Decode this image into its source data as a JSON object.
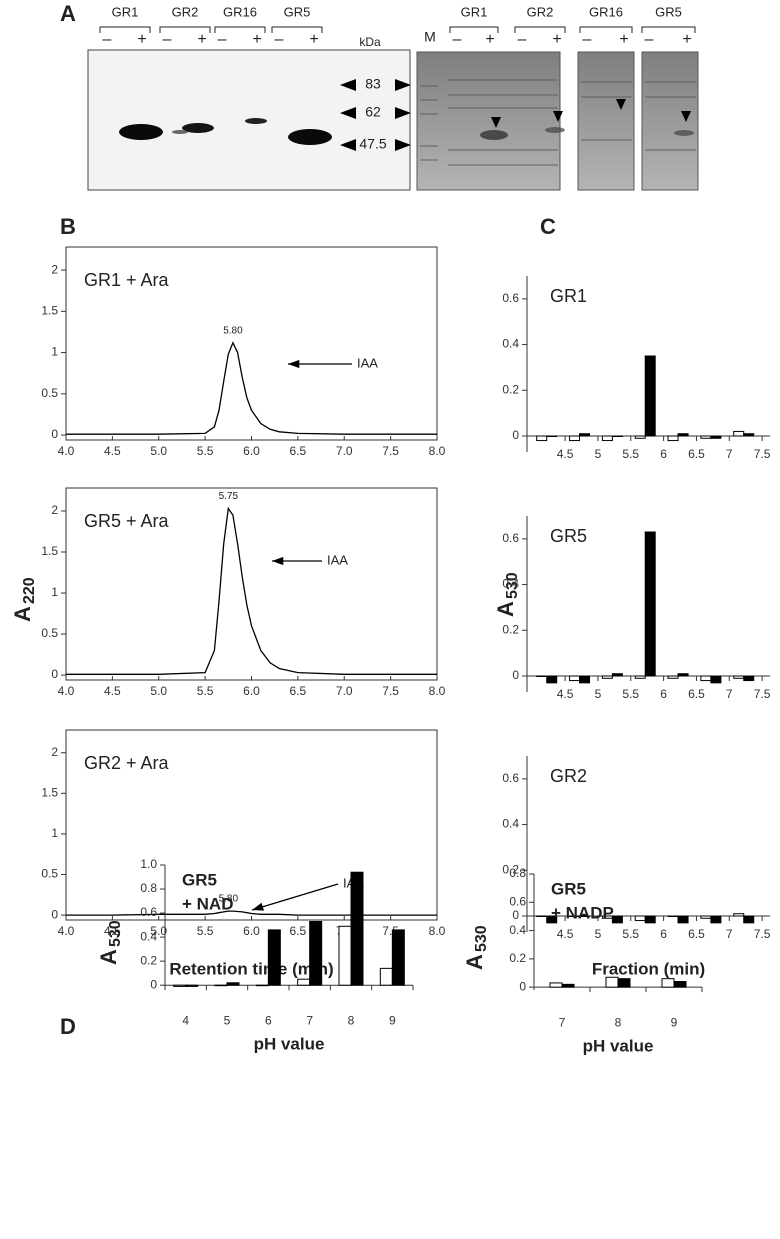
{
  "gel": {
    "panel": "A",
    "groups": [
      "GR1",
      "GR2",
      "GR16",
      "GR5"
    ],
    "signs": [
      "–",
      "+"
    ],
    "unit": "kDa",
    "markers": [
      83,
      62,
      47.5
    ],
    "ladder": "M"
  },
  "chart_data": [
    {
      "type": "line",
      "panel": "B",
      "title": "GR1 + Ara",
      "peak_label": "5.80",
      "annotation": "IAA",
      "x": [
        4.0,
        4.5,
        5.0,
        5.5,
        5.6,
        5.65,
        5.7,
        5.75,
        5.8,
        5.85,
        5.9,
        5.95,
        6.0,
        6.1,
        6.2,
        6.3,
        6.5,
        7.0,
        7.5,
        8.0
      ],
      "values": [
        0.01,
        0.01,
        0.01,
        0.02,
        0.1,
        0.3,
        0.65,
        0.98,
        1.12,
        1.0,
        0.7,
        0.45,
        0.3,
        0.14,
        0.07,
        0.04,
        0.02,
        0.01,
        0.01,
        0.01
      ],
      "color": "#000000",
      "xlim": [
        4,
        8
      ],
      "ylim": [
        -0.06,
        2.28
      ],
      "xticks": [
        {
          "value": 4,
          "label": "4.0"
        },
        4.5,
        {
          "value": 5,
          "label": "5.0"
        },
        5.5,
        {
          "value": 6,
          "label": "6.0"
        },
        6.5,
        {
          "value": 7,
          "label": "7.0"
        },
        7.5,
        {
          "value": 8,
          "label": "8.0"
        }
      ],
      "yticks": [
        0,
        0.5,
        1,
        1.5,
        2
      ]
    },
    {
      "type": "line",
      "title": "GR5 + Ara",
      "peak_label": "5.75",
      "annotation": "IAA",
      "ylabel": {
        "main": "A",
        "sub": "220"
      },
      "x": [
        4.0,
        4.5,
        5.0,
        5.5,
        5.6,
        5.65,
        5.7,
        5.75,
        5.8,
        5.85,
        5.9,
        5.95,
        6.0,
        6.1,
        6.2,
        6.3,
        6.5,
        7.0,
        7.5,
        8.0
      ],
      "values": [
        0.01,
        0.01,
        0.01,
        0.03,
        0.3,
        0.9,
        1.6,
        2.03,
        1.95,
        1.6,
        1.2,
        0.85,
        0.6,
        0.3,
        0.15,
        0.08,
        0.03,
        0.01,
        0.01,
        0.01
      ],
      "color": "#000000",
      "xlim": [
        4,
        8
      ],
      "ylim": [
        -0.06,
        2.28
      ],
      "xticks": [
        {
          "value": 4,
          "label": "4.0"
        },
        4.5,
        {
          "value": 5,
          "label": "5.0"
        },
        5.5,
        {
          "value": 6,
          "label": "6.0"
        },
        6.5,
        {
          "value": 7,
          "label": "7.0"
        },
        7.5,
        {
          "value": 8,
          "label": "8.0"
        }
      ],
      "yticks": [
        0,
        0.5,
        1,
        1.5,
        2
      ]
    },
    {
      "type": "line",
      "title": "GR2 + Ara",
      "peak_label": "5.80",
      "annotation": "IAA",
      "xlabel": "Retention time (min)",
      "x": [
        4.0,
        4.5,
        5.0,
        5.5,
        5.6,
        5.65,
        5.7,
        5.75,
        5.8,
        5.85,
        5.9,
        5.95,
        6.0,
        6.1,
        6.2,
        6.3,
        6.5,
        7.0,
        7.5,
        8.0
      ],
      "values": [
        0.0,
        0.0,
        0.01,
        0.01,
        0.02,
        0.03,
        0.04,
        0.05,
        0.05,
        0.045,
        0.04,
        0.03,
        0.02,
        0.01,
        0.01,
        0.01,
        0.0,
        0.0,
        0.0,
        0.0
      ],
      "color": "#000000",
      "xlim": [
        4,
        8
      ],
      "ylim": [
        -0.06,
        2.28
      ],
      "xticks": [
        {
          "value": 4,
          "label": "4.0"
        },
        4.5,
        {
          "value": 5,
          "label": "5.0"
        },
        5.5,
        {
          "value": 6,
          "label": "6.0"
        },
        6.5,
        {
          "value": 7,
          "label": "7.0"
        },
        7.5,
        {
          "value": 8,
          "label": "8.0"
        }
      ],
      "yticks": [
        0,
        0.5,
        1,
        1.5,
        2
      ]
    },
    {
      "type": "bar",
      "panel": "C",
      "title": "GR1",
      "x": [
        4.22,
        4.72,
        5.22,
        5.72,
        6.22,
        6.72,
        7.22
      ],
      "series": [
        {
          "color": "#ffffff",
          "values": [
            -0.02,
            -0.02,
            -0.02,
            -0.01,
            -0.02,
            -0.01,
            0.02
          ]
        },
        {
          "color": "#000000",
          "values": [
            0,
            0.01,
            0,
            0.35,
            0.01,
            -0.01,
            0.01
          ]
        }
      ],
      "xlim": [
        3.92,
        7.62
      ],
      "ylim": [
        -0.07,
        0.7
      ],
      "xticks": [
        4.5,
        5,
        5.5,
        6,
        6.5,
        7,
        7.5
      ],
      "yticks": [
        0,
        0.2,
        0.4,
        0.6
      ]
    },
    {
      "type": "bar",
      "title": "GR5",
      "ylabel": {
        "main": "A",
        "sub": "530"
      },
      "x": [
        4.22,
        4.72,
        5.22,
        5.72,
        6.22,
        6.72,
        7.22
      ],
      "series": [
        {
          "color": "#ffffff",
          "values": [
            0,
            -0.02,
            -0.01,
            -0.01,
            -0.01,
            -0.02,
            -0.01
          ]
        },
        {
          "color": "#000000",
          "values": [
            -0.03,
            -0.03,
            0.01,
            0.63,
            0.01,
            -0.03,
            -0.02
          ]
        }
      ],
      "xlim": [
        3.92,
        7.62
      ],
      "ylim": [
        -0.07,
        0.7
      ],
      "xticks": [
        4.5,
        5,
        5.5,
        6,
        6.5,
        7,
        7.5
      ],
      "yticks": [
        0,
        0.2,
        0.4,
        0.6
      ]
    },
    {
      "type": "bar",
      "title": "GR2",
      "xlabel": "Fraction (min)",
      "x": [
        4.22,
        4.72,
        5.22,
        5.72,
        6.22,
        6.72,
        7.22
      ],
      "series": [
        {
          "color": "#ffffff",
          "values": [
            0,
            0,
            -0.01,
            -0.02,
            0,
            -0.01,
            0.01
          ]
        },
        {
          "color": "#000000",
          "values": [
            -0.03,
            0,
            -0.03,
            -0.03,
            -0.03,
            -0.03,
            -0.03
          ]
        }
      ],
      "xlim": [
        3.92,
        7.62
      ],
      "ylim": [
        -0.07,
        0.7
      ],
      "xticks": [
        4.5,
        5,
        5.5,
        6,
        6.5,
        7,
        7.5
      ],
      "yticks": [
        0,
        0.2,
        0.4,
        0.6
      ]
    },
    {
      "type": "bar",
      "panel": "D",
      "title": [
        "GR5",
        "+ NAD"
      ],
      "xlabel": "pH value",
      "ylabel": {
        "main": "A",
        "sub": "530"
      },
      "categories": [
        "4",
        "5",
        "6",
        "7",
        "8",
        "9"
      ],
      "series": [
        {
          "color": "#ffffff",
          "values": [
            -0.01,
            0,
            0,
            0.05,
            0.49,
            0.14
          ]
        },
        {
          "color": "#000000",
          "values": [
            -0.01,
            0.02,
            0.46,
            0.53,
            0.94,
            0.46
          ]
        }
      ],
      "ylim": [
        -0.04,
        1.0
      ],
      "yticks": [
        0,
        0.2,
        0.4,
        0.6,
        0.8,
        {
          "value": 1,
          "label": "1.0"
        }
      ]
    },
    {
      "type": "bar",
      "title": [
        "GR5",
        "+ NADP"
      ],
      "xlabel": "pH value",
      "ylabel": {
        "main": "A",
        "sub": "530"
      },
      "categories": [
        "7",
        "8",
        "9"
      ],
      "series": [
        {
          "color": "#ffffff",
          "values": [
            0.03,
            0.07,
            0.06
          ]
        },
        {
          "color": "#000000",
          "values": [
            0.02,
            0.06,
            0.04
          ]
        }
      ],
      "ylim": [
        -0.02,
        0.8
      ],
      "yticks": [
        0,
        0.2,
        0.4,
        0.6,
        0.8
      ]
    }
  ]
}
